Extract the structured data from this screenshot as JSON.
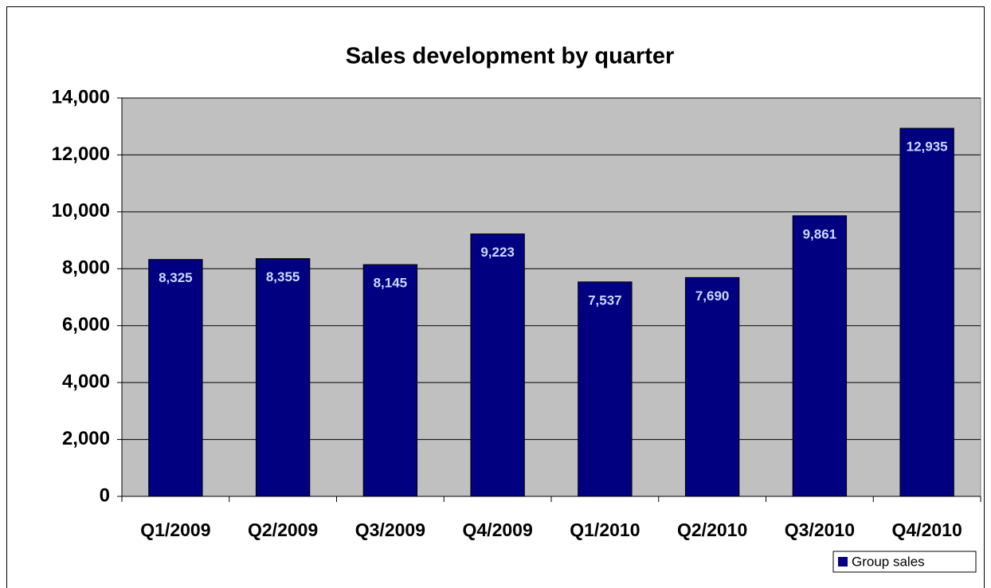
{
  "chart_data": {
    "type": "bar",
    "title": "Sales development by quarter",
    "categories": [
      "Q1/2009",
      "Q2/2009",
      "Q3/2009",
      "Q4/2009",
      "Q1/2010",
      "Q2/2010",
      "Q3/2010",
      "Q4/2010"
    ],
    "series": [
      {
        "name": "Group sales",
        "color": "#000080",
        "values": [
          8325,
          8355,
          8145,
          9223,
          7537,
          7690,
          9861,
          12935
        ],
        "value_labels": [
          "8,325",
          "8,355",
          "8,145",
          "9,223",
          "7,537",
          "7,690",
          "9,861",
          "12,935"
        ]
      }
    ],
    "ylim": [
      0,
      14000
    ],
    "yticks": [
      0,
      {
        "value": 2000,
        "label": "2,000"
      },
      {
        "value": 4000,
        "label": "4,000"
      },
      {
        "value": 6000,
        "label": "6,000"
      },
      {
        "value": 8000,
        "label": "8,000"
      },
      {
        "value": 10000,
        "label": "10,000"
      },
      {
        "value": 12000,
        "label": "12,000"
      },
      {
        "value": 14000,
        "label": "14,000"
      }
    ],
    "grid": true,
    "legend": "bottom-right"
  }
}
